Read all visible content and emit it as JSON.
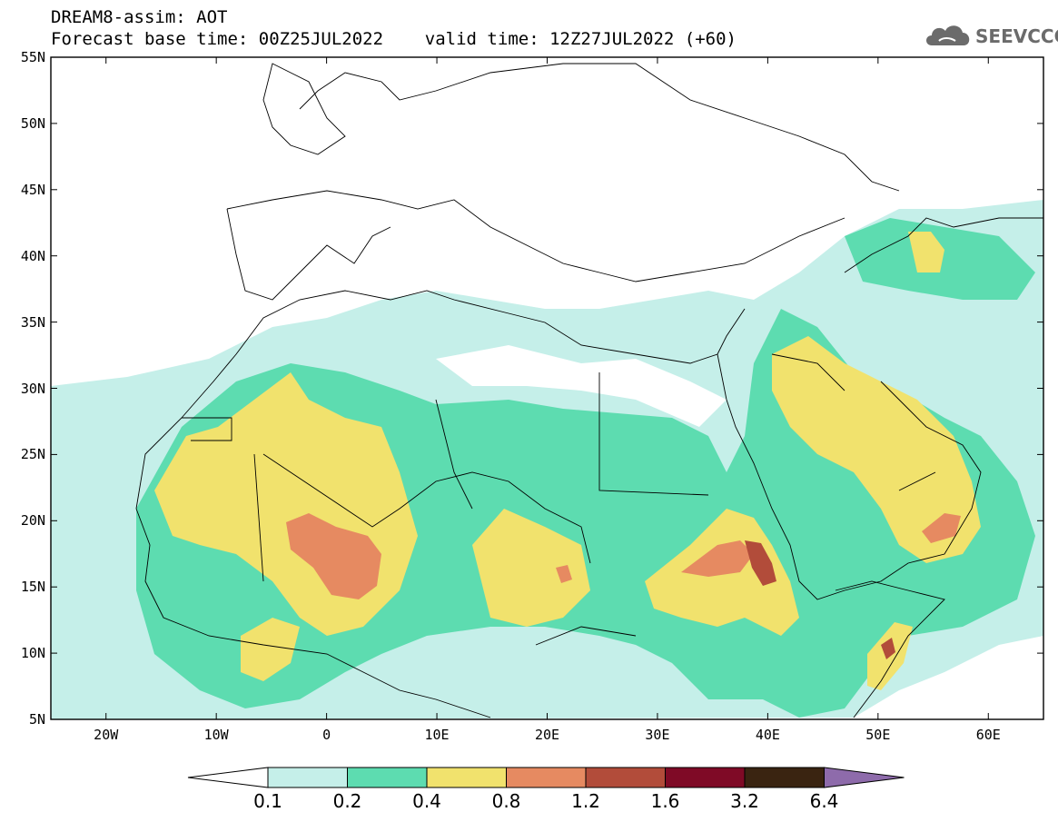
{
  "header": {
    "line1": "DREAM8-assim: AOT",
    "line2": "Forecast base time: 00Z25JUL2022    valid time: 12Z27JUL2022 (+60)"
  },
  "logo": {
    "text": "SEEVCCC",
    "icon": "cloud-icon",
    "color": "#6b6b6b"
  },
  "map": {
    "lon_range": [
      -25,
      65
    ],
    "lat_range": [
      5,
      55
    ],
    "y_ticks": [
      {
        "lat": 55,
        "label": "55N"
      },
      {
        "lat": 50,
        "label": "50N"
      },
      {
        "lat": 45,
        "label": "45N"
      },
      {
        "lat": 40,
        "label": "40N"
      },
      {
        "lat": 35,
        "label": "35N"
      },
      {
        "lat": 30,
        "label": "30N"
      },
      {
        "lat": 25,
        "label": "25N"
      },
      {
        "lat": 20,
        "label": "20N"
      },
      {
        "lat": 15,
        "label": "15N"
      },
      {
        "lat": 10,
        "label": "10N"
      },
      {
        "lat": 5,
        "label": "5N"
      }
    ],
    "x_ticks": [
      {
        "lon": -20,
        "label": "20W"
      },
      {
        "lon": -10,
        "label": "10W"
      },
      {
        "lon": 0,
        "label": "0"
      },
      {
        "lon": 10,
        "label": "10E"
      },
      {
        "lon": 20,
        "label": "20E"
      },
      {
        "lon": 30,
        "label": "30E"
      },
      {
        "lon": 40,
        "label": "40E"
      },
      {
        "lon": 50,
        "label": "50E"
      },
      {
        "lon": 60,
        "label": "60E"
      }
    ]
  },
  "colorbar": {
    "colors": [
      "#c5efe9",
      "#5ddcb0",
      "#f1e26d",
      "#e68a61",
      "#b24c3a",
      "#7f0a26",
      "#3a2411"
    ],
    "low_color": "#ffffff",
    "high_color": "#8e6bab",
    "labels": [
      "0.1",
      "0.2",
      "0.4",
      "0.8",
      "1.2",
      "1.6",
      "3.2",
      "6.4"
    ]
  }
}
